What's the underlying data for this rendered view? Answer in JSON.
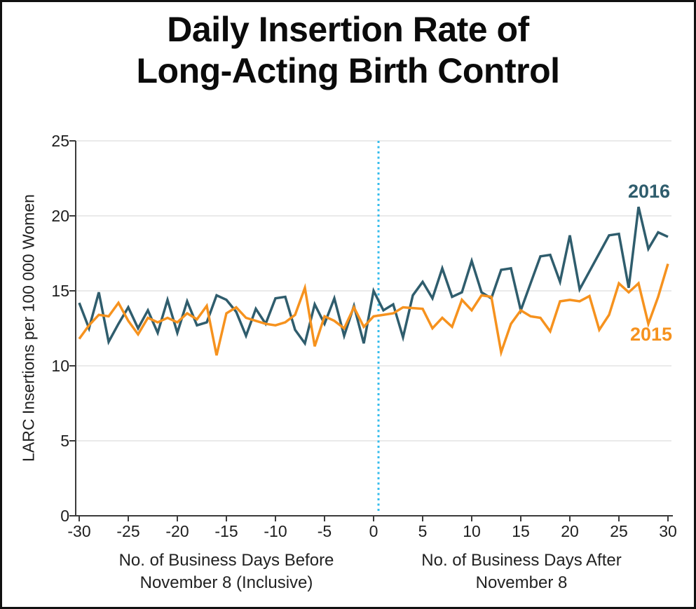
{
  "title": {
    "line1": "Daily Insertion Rate of",
    "line2": "Long-Acting Birth Control"
  },
  "axis": {
    "ylabel": "LARC Insertions per 100 000 Women",
    "x_sublabel_before": [
      "No. of Business Days Before",
      "November 8 (Inclusive)"
    ],
    "x_sublabel_after": [
      "No. of Business Days After",
      "November 8"
    ]
  },
  "chart_data": {
    "type": "line",
    "title": "Daily Insertion Rate of Long-Acting Birth Control",
    "ylabel": "LARC Insertions per 100 000 Women",
    "xlabel": "No. of Business Days Before / After November 8",
    "ylim": [
      0,
      25
    ],
    "xlim": [
      -30,
      30
    ],
    "yticks": [
      0,
      5,
      10,
      15,
      20,
      25
    ],
    "xticks": [
      -30,
      -25,
      -20,
      -15,
      -10,
      -5,
      0,
      5,
      10,
      15,
      20,
      25,
      30
    ],
    "grid": "horizontal",
    "grid_color": "#E4E4E4",
    "axis_color": "#3B3B3B",
    "vline": {
      "x": 0.5,
      "color": "#35BCEC",
      "style": "dotted",
      "meaning": "November 8 election day divider"
    },
    "legend_position": "inline-right",
    "x": [
      -30,
      -29,
      -28,
      -27,
      -26,
      -25,
      -24,
      -23,
      -22,
      -21,
      -20,
      -19,
      -18,
      -17,
      -16,
      -15,
      -14,
      -13,
      -12,
      -11,
      -10,
      -9,
      -8,
      -7,
      -6,
      -5,
      -4,
      -3,
      -2,
      -1,
      0,
      1,
      2,
      3,
      4,
      5,
      6,
      7,
      8,
      9,
      10,
      11,
      12,
      13,
      14,
      15,
      16,
      17,
      18,
      19,
      20,
      21,
      22,
      23,
      24,
      25,
      26,
      27,
      28,
      29,
      30
    ],
    "series": [
      {
        "name": "2016",
        "color": "#2F5D6D",
        "values": [
          14.2,
          12.5,
          14.9,
          11.6,
          12.8,
          13.9,
          12.5,
          13.7,
          12.2,
          14.4,
          12.2,
          14.3,
          12.7,
          12.9,
          14.7,
          14.4,
          13.6,
          12.0,
          13.8,
          12.8,
          14.5,
          14.6,
          12.4,
          11.5,
          14.1,
          12.8,
          14.5,
          12.0,
          14.0,
          11.5,
          15.0,
          13.7,
          14.1,
          11.9,
          14.7,
          15.6,
          14.5,
          16.5,
          14.6,
          14.9,
          17.0,
          14.9,
          14.5,
          16.4,
          16.5,
          13.7,
          15.5,
          17.3,
          17.4,
          15.6,
          18.7,
          15.1,
          16.3,
          17.5,
          18.7,
          18.8,
          15.2,
          20.6,
          17.8,
          18.9,
          18.6
        ]
      },
      {
        "name": "2015",
        "color": "#F6921E",
        "values": [
          11.8,
          12.7,
          13.4,
          13.3,
          14.2,
          13.0,
          12.1,
          13.2,
          12.9,
          13.2,
          12.9,
          13.5,
          13.1,
          14.0,
          10.7,
          13.5,
          13.9,
          13.2,
          13.0,
          12.8,
          12.7,
          12.9,
          13.4,
          15.2,
          11.3,
          13.3,
          13.0,
          12.5,
          13.9,
          12.6,
          13.3,
          13.4,
          13.5,
          13.9,
          13.85,
          13.8,
          12.5,
          13.2,
          12.6,
          14.4,
          13.7,
          14.7,
          14.6,
          10.9,
          12.8,
          13.7,
          13.3,
          13.2,
          12.3,
          14.3,
          14.4,
          14.3,
          14.65,
          12.4,
          13.4,
          15.5,
          14.9,
          15.5,
          12.8,
          14.6,
          16.8
        ]
      }
    ]
  }
}
